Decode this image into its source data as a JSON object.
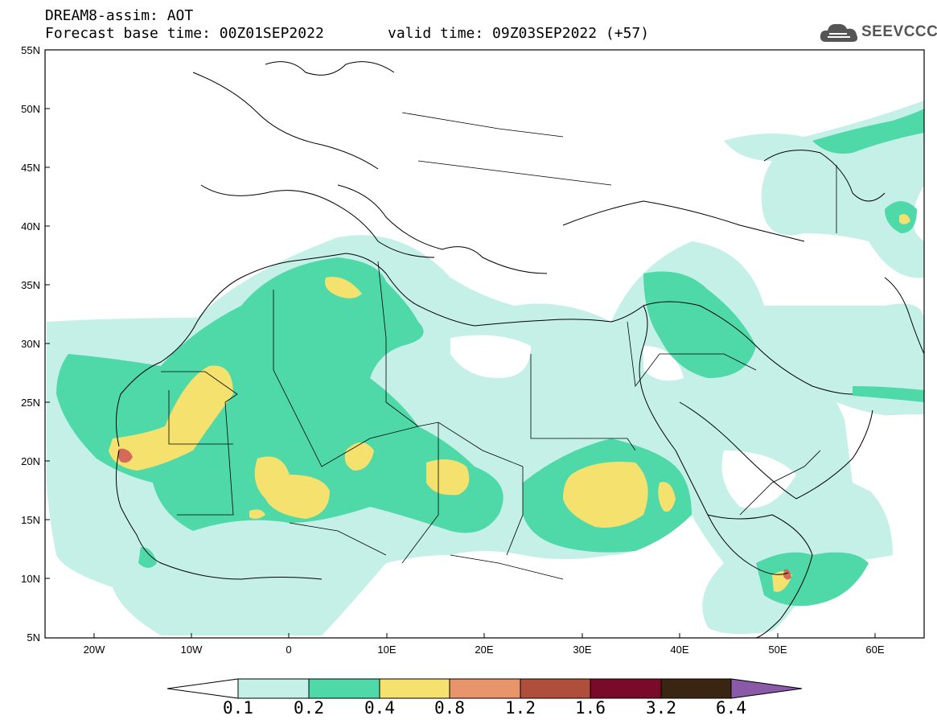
{
  "header": {
    "title": "DREAM8-assim: AOT",
    "forecast_base": "Forecast base time: 00Z01SEP2022",
    "valid_time": "valid time: 09Z03SEP2022 (+57)"
  },
  "logo": {
    "text": "SEEVCCC",
    "icon": "cloud-icon"
  },
  "map": {
    "lon_range": [
      -25,
      65
    ],
    "lat_range": [
      5,
      55
    ],
    "lat_labels": [
      "55N",
      "50N",
      "45N",
      "40N",
      "35N",
      "30N",
      "25N",
      "20N",
      "15N",
      "10N",
      "5N"
    ],
    "lon_labels": [
      "20W",
      "10W",
      "0",
      "10E",
      "20E",
      "30E",
      "40E",
      "50E",
      "60E"
    ]
  },
  "colorbar": {
    "colors": [
      "#c4f0e8",
      "#4fd8a8",
      "#f5e26e",
      "#e8956c",
      "#b04e3c",
      "#7a0a2a",
      "#3a2412",
      "#8a5aa8"
    ],
    "labels": [
      "0.1",
      "0.2",
      "0.4",
      "0.8",
      "1.2",
      "1.6",
      "3.2",
      "6.4"
    ]
  }
}
